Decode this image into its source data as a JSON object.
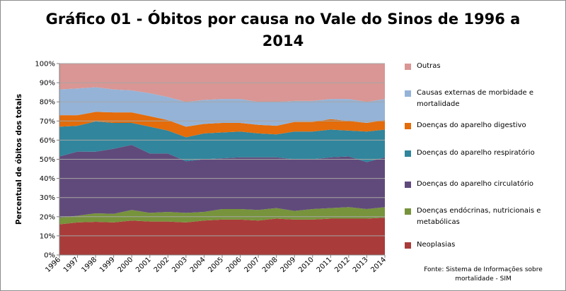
{
  "title_line1": "Gráfico 01 - Óbitos por causa no Vale do Sinos de 1996  a",
  "title_line2": "2014",
  "source_line1": "Fonte: Sistema de Informações sobre",
  "source_line2": "mortalidade - SIM",
  "legend": [
    {
      "label": "Outras",
      "color": "#d99694"
    },
    {
      "label": "Causas externas de morbidade e mortalidade",
      "color": "#95b3d7"
    },
    {
      "label": "Doenças do aparelho digestivo",
      "color": "#e46c0a"
    },
    {
      "label": "Doenças do aparelho respiratório",
      "color": "#31859c"
    },
    {
      "label": "Doenças do aparelho circulatório",
      "color": "#604a7b"
    },
    {
      "label": "Doenças endócrinas, nutricionais e metabólicas",
      "color": "#77933c"
    },
    {
      "label": "Neoplasias",
      "color": "#a93c3a"
    }
  ],
  "chart_data": {
    "type": "area",
    "stacked": true,
    "title": "Gráfico 01 - Óbitos por causa no Vale do Sinos de 1996  a 2014",
    "ylabel": "Percentual de óbitos dos totais",
    "xlabel": "",
    "ylim": [
      0,
      100
    ],
    "y_unit": "%",
    "yticks": [
      "0%",
      "10%",
      "20%",
      "30%",
      "40%",
      "50%",
      "60%",
      "70%",
      "80%",
      "90%",
      "100%"
    ],
    "grid": true,
    "legend_position": "right",
    "categories": [
      "1996",
      "1997",
      "1998",
      "1999",
      "2000",
      "2001",
      "2002",
      "2003",
      "2004",
      "2005",
      "2006",
      "2007",
      "2008",
      "2009",
      "2010",
      "2011",
      "2012",
      "2013",
      "2014"
    ],
    "series": [
      {
        "name": "Neoplasias",
        "color": "#a93c3a",
        "values": [
          16,
          17,
          17.5,
          17,
          18,
          17.5,
          17.5,
          17,
          18,
          18.5,
          18.5,
          18,
          19,
          18.5,
          18.5,
          19,
          19,
          19,
          19.5
        ]
      },
      {
        "name": "Doenças endócrinas, nutricionais e metabólicas",
        "color": "#77933c",
        "values": [
          3.5,
          3.5,
          4.5,
          4.5,
          5.5,
          4.5,
          5,
          5,
          4.5,
          5.5,
          5.5,
          5.5,
          5.5,
          4.5,
          5.5,
          5.5,
          6,
          5,
          5.5
        ]
      },
      {
        "name": "Doenças do aparelho circulatório",
        "color": "#604a7b",
        "values": [
          32,
          33.5,
          32.5,
          34,
          34,
          31,
          30.5,
          27,
          27.5,
          26.5,
          27,
          27.5,
          26.5,
          27,
          26,
          26.5,
          26.5,
          24.5,
          26
        ]
      },
      {
        "name": "Doenças do aparelho respiratório",
        "color": "#31859c",
        "values": [
          15.5,
          13.5,
          16,
          13.5,
          11.5,
          14,
          12,
          12.5,
          13.5,
          13.5,
          13.5,
          12.5,
          12,
          14.5,
          14.5,
          14.5,
          13.5,
          16,
          14.5
        ]
      },
      {
        "name": "Doenças do aparelho digestivo",
        "color": "#e46c0a",
        "values": [
          6,
          5.5,
          5,
          5.5,
          5.5,
          5.5,
          5.5,
          5.5,
          5,
          5,
          4.5,
          4.5,
          4.5,
          5,
          5,
          5.5,
          5,
          4.5,
          5
        ]
      },
      {
        "name": "Causas externas de morbidade e mortalidade",
        "color": "#95b3d7",
        "values": [
          13.5,
          14,
          13,
          12,
          11.5,
          12,
          12,
          13,
          12.5,
          12.5,
          12.5,
          12,
          12.5,
          11,
          11,
          10.5,
          11.5,
          11,
          11
        ]
      },
      {
        "name": "Outras",
        "color": "#d99694",
        "values": [
          13.5,
          13,
          12.5,
          13.5,
          14,
          15.5,
          17.5,
          20,
          19,
          18.5,
          18.5,
          20,
          20,
          19.5,
          19.5,
          18.5,
          18.5,
          20,
          18.5
        ]
      }
    ]
  }
}
